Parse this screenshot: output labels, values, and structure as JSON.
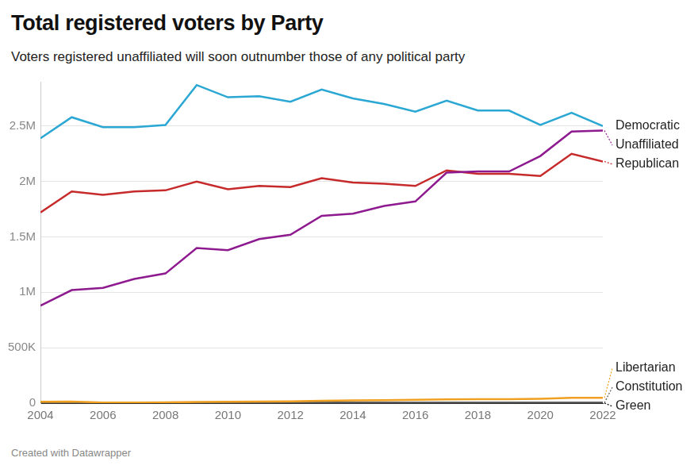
{
  "chart_data": {
    "type": "line",
    "title": "Total registered voters by Party",
    "subtitle": "Voters registered unaffiliated will soon outnumber those of any political party",
    "caption": "Created with Datawrapper",
    "x": [
      2004,
      2005,
      2006,
      2007,
      2008,
      2009,
      2010,
      2011,
      2012,
      2013,
      2014,
      2015,
      2016,
      2017,
      2018,
      2019,
      2020,
      2021,
      2022
    ],
    "xlim": [
      2004,
      2022
    ],
    "xticks": [
      2004,
      2006,
      2008,
      2010,
      2012,
      2014,
      2016,
      2018,
      2020,
      2022
    ],
    "ylim": [
      0,
      2900000
    ],
    "yticks": [
      0,
      {
        "value": 500000,
        "label": "500K"
      },
      {
        "value": 1000000,
        "label": "1M"
      },
      {
        "value": 1500000,
        "label": "1.5M"
      },
      {
        "value": 2000000,
        "label": "2M"
      },
      {
        "value": 2500000,
        "label": "2.5M"
      }
    ],
    "grid": true,
    "series": [
      {
        "name": "Democratic",
        "color": "#2aa7d3",
        "values": [
          2390000,
          2580000,
          2490000,
          2490000,
          2510000,
          2870000,
          2760000,
          2770000,
          2720000,
          2830000,
          2750000,
          2700000,
          2630000,
          2730000,
          2640000,
          2640000,
          2510000,
          2620000,
          2500000
        ]
      },
      {
        "name": "Unaffiliated",
        "color": "#8e1a8f",
        "values": [
          880000,
          1020000,
          1040000,
          1120000,
          1170000,
          1400000,
          1380000,
          1480000,
          1520000,
          1690000,
          1710000,
          1780000,
          1820000,
          2080000,
          2090000,
          2090000,
          2230000,
          2450000,
          2460000
        ]
      },
      {
        "name": "Republican",
        "color": "#c62a2a",
        "values": [
          1720000,
          1910000,
          1880000,
          1910000,
          1920000,
          2000000,
          1930000,
          1960000,
          1950000,
          2030000,
          1990000,
          1980000,
          1960000,
          2100000,
          2070000,
          2070000,
          2050000,
          2250000,
          2180000
        ]
      },
      {
        "name": "Libertarian",
        "color": "#f0a020",
        "values": [
          12000,
          14000,
          6000,
          6000,
          7000,
          10000,
          12000,
          14000,
          16000,
          22000,
          25000,
          27000,
          30000,
          34000,
          35000,
          36000,
          40000,
          48000,
          48000
        ]
      },
      {
        "name": "Constitution",
        "color": "#555555",
        "values": [
          3000,
          3000,
          3000,
          3000,
          3000,
          3000,
          3000,
          3000,
          3000,
          3000,
          3000,
          3000,
          3000,
          3000,
          3000,
          3000,
          3000,
          4000,
          4000
        ]
      },
      {
        "name": "Green",
        "color": "#111111",
        "values": [
          1000,
          1000,
          1000,
          1000,
          1000,
          1000,
          1000,
          1000,
          1000,
          1000,
          1000,
          1000,
          1000,
          1000,
          1000,
          1000,
          1000,
          1000,
          1000
        ]
      }
    ]
  }
}
